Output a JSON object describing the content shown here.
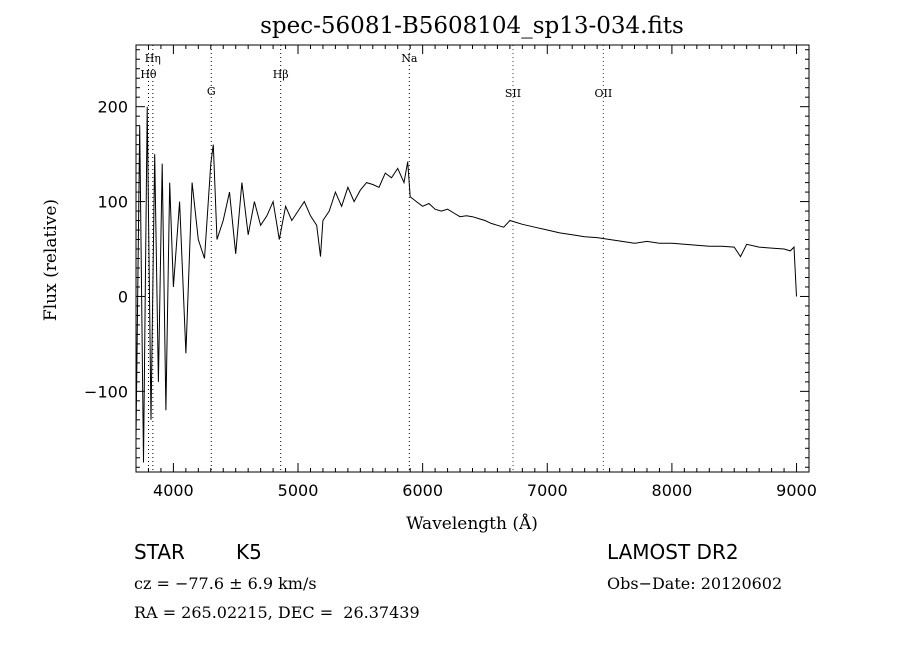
{
  "chart_data": {
    "type": "line",
    "title": "spec-56081-B5608104_sp13-034.fits",
    "xlabel": "Wavelength (Å)",
    "ylabel": "Flux (relative)",
    "xlim": [
      3700,
      9100
    ],
    "ylim": [
      -185,
      265
    ],
    "x_ticks": [
      4000,
      5000,
      6000,
      7000,
      8000,
      9000
    ],
    "y_ticks": [
      -100,
      0,
      100,
      200
    ],
    "x_tick_labels": [
      "4000",
      "5000",
      "6000",
      "7000",
      "8000",
      "9000"
    ],
    "y_tick_labels": [
      "−100",
      "0",
      "100",
      "200"
    ],
    "grid": false,
    "line_color": "#000000",
    "series": [
      {
        "x": [
          3700,
          3730,
          3760,
          3790,
          3820,
          3850,
          3880,
          3910,
          3940,
          3970,
          4000,
          4050,
          4100,
          4150,
          4200,
          4250,
          4300,
          4320,
          4350,
          4400,
          4450,
          4500,
          4550,
          4600,
          4650,
          4700,
          4750,
          4800,
          4850,
          4900,
          4950,
          5000,
          5050,
          5100,
          5150,
          5180,
          5200,
          5250,
          5300,
          5350,
          5400,
          5450,
          5500,
          5550,
          5600,
          5650,
          5700,
          5750,
          5800,
          5850,
          5880,
          5900,
          5950,
          6000,
          6050,
          6100,
          6150,
          6200,
          6250,
          6300,
          6350,
          6400,
          6450,
          6500,
          6550,
          6600,
          6650,
          6700,
          6750,
          6800,
          6900,
          7000,
          7100,
          7200,
          7300,
          7400,
          7500,
          7600,
          7700,
          7800,
          7900,
          8000,
          8100,
          8200,
          8300,
          8400,
          8500,
          8550,
          8600,
          8700,
          8800,
          8900,
          8950,
          8980,
          9000
        ],
        "y": [
          -150,
          180,
          -175,
          200,
          -130,
          150,
          -90,
          140,
          -120,
          120,
          10,
          100,
          -60,
          120,
          60,
          40,
          140,
          160,
          60,
          80,
          110,
          45,
          120,
          65,
          100,
          75,
          85,
          100,
          60,
          95,
          80,
          90,
          100,
          85,
          75,
          42,
          80,
          90,
          110,
          95,
          115,
          100,
          112,
          120,
          118,
          115,
          130,
          125,
          135,
          120,
          142,
          105,
          100,
          95,
          98,
          92,
          90,
          92,
          88,
          84,
          85,
          84,
          82,
          80,
          77,
          75,
          73,
          80,
          78,
          76,
          73,
          70,
          67,
          65,
          63,
          62,
          60,
          58,
          56,
          58,
          56,
          56,
          55,
          54,
          53,
          53,
          52,
          42,
          55,
          52,
          51,
          50,
          48,
          52,
          0
        ]
      }
    ],
    "line_markers": [
      {
        "label": "Hη",
        "x": 3835,
        "color": "#000000"
      },
      {
        "label": "Hθ",
        "x": 3800,
        "color": "#000000"
      },
      {
        "label": "G",
        "x": 4304,
        "color": "#000000"
      },
      {
        "label": "Hβ",
        "x": 4861,
        "color": "#000000"
      },
      {
        "label": "Na",
        "x": 5893,
        "color": "#000000"
      },
      {
        "label": "SII",
        "x": 6725,
        "color": "#cc0000"
      },
      {
        "label": "OII",
        "x": 7450,
        "color": "#cc0000"
      }
    ]
  },
  "info": {
    "object_class": "STAR",
    "subclass": "K5",
    "survey": "LAMOST DR2",
    "redshift": "cz = −77.6 ± 6.9 km/s",
    "obs_date": "Obs−Date: 20120602",
    "coords": "RA = 265.02215, DEC =  26.37439"
  }
}
